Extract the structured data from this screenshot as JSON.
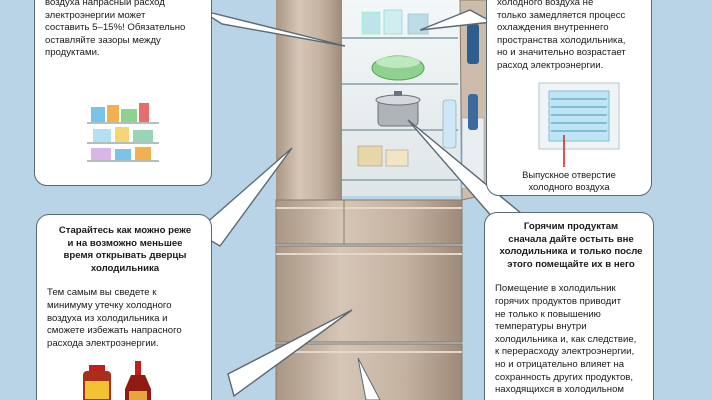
{
  "left_top_bubble": {
    "lines": [
      "воздуха напрасный расход",
      "электроэнергии может",
      "составить 5–15%! Обязательно",
      "оставляйте зазоры между",
      "продуктами."
    ]
  },
  "right_top_bubble": {
    "lines": [
      "холодного воздуха не",
      "только замедляется процесс",
      "охлаждения внутреннего",
      "пространства холодильника,",
      "но и значительно возрастает",
      "расход электроэнергии."
    ],
    "vent_caption_lines": [
      "Выпускное отверстие",
      "холодного воздуха"
    ]
  },
  "left_bottom_bubble": {
    "heading_lines": [
      "Старайтесь как можно реже",
      "и на возможно меньшее",
      "время открывать дверцы",
      "холодильника"
    ],
    "body_lines": [
      "Тем самым вы сведете к",
      "минимуму утечку холодного",
      "воздуха из холодильника и",
      "сможете избежать напрасного",
      "расхода электроэнергии."
    ]
  },
  "right_bottom_bubble": {
    "heading_lines": [
      "Горячим продуктам",
      "сначала дайте остыть вне",
      "холодильника и только после",
      "этого помещайте их в него"
    ],
    "body_lines": [
      "Помещение в холодильник",
      "горячих продуктов приводит",
      "не только к повышению",
      "температуры внутри",
      "холодильника и, как следствие,",
      "к перерасходу электроэнергии,",
      "но и отрицательно влияет на",
      "сохранность других продуктов,",
      "находящихся в холодильном"
    ]
  },
  "colors": {
    "background": "#b9d4e6",
    "fridge_body": "#c9b7a5",
    "bubble_border": "#5a6a73",
    "red_marker": "#d42b2b"
  },
  "icons": [
    "refrigerator",
    "food-containers-shelf",
    "sauce-bottles",
    "air-vent",
    "pot",
    "water-bottle"
  ]
}
